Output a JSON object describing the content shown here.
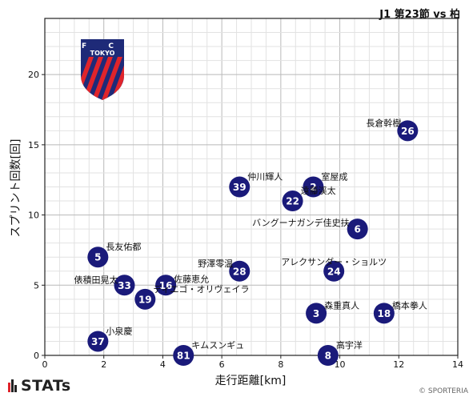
{
  "match_title": "J1 第23節 vs 柏",
  "club_badge": {
    "text_top": "F C",
    "text_mid": "TOKYO",
    "primary": "#1e2a78",
    "accent": "#e0242b"
  },
  "footer": {
    "logo_text": "STATs",
    "copyright": "© SPORTERIA"
  },
  "colors": {
    "marker": "#1a1a7a",
    "marker_text": "#ffffff",
    "grid_major": "#b9b9b9",
    "grid_minor": "#e2e2e2"
  },
  "chart_data": {
    "type": "scatter",
    "xlabel": "走行距離[km]",
    "ylabel": "スプリント回数[回]",
    "xlim": [
      0,
      14
    ],
    "ylim": [
      0,
      24
    ],
    "xticks": [
      0,
      2,
      4,
      6,
      8,
      10,
      12,
      14
    ],
    "yticks": [
      0,
      5,
      10,
      15,
      20
    ],
    "grid": true,
    "points": [
      {
        "number": "26",
        "name": "長倉幹樹",
        "x": 12.3,
        "y": 16
      },
      {
        "number": "39",
        "name": "仲川輝人",
        "x": 6.6,
        "y": 12
      },
      {
        "number": "2",
        "name": "室屋成",
        "x": 9.1,
        "y": 12
      },
      {
        "number": "22",
        "name": "遠藤渓太",
        "x": 8.4,
        "y": 11
      },
      {
        "number": "6",
        "name": "バングーナガンデ佳史扶",
        "x": 10.6,
        "y": 9
      },
      {
        "number": "5",
        "name": "長友佑都",
        "x": 1.8,
        "y": 7
      },
      {
        "number": "28",
        "name": "野澤零温",
        "x": 6.6,
        "y": 6
      },
      {
        "number": "24",
        "name": "アレクサンダー・ショルツ",
        "x": 9.8,
        "y": 6
      },
      {
        "number": "33",
        "name": "俵積田晃太",
        "x": 2.7,
        "y": 5
      },
      {
        "number": "16",
        "name": "佐藤恵允",
        "x": 4.1,
        "y": 5
      },
      {
        "number": "19",
        "name": "ディエゴ・オリヴェイラ",
        "x": 3.4,
        "y": 4
      },
      {
        "number": "3",
        "name": "森重真人",
        "x": 9.2,
        "y": 3
      },
      {
        "number": "18",
        "name": "橋本拳人",
        "x": 11.5,
        "y": 3
      },
      {
        "number": "37",
        "name": "小泉慶",
        "x": 1.8,
        "y": 1
      },
      {
        "number": "81",
        "name": "キムスンギュ",
        "x": 4.7,
        "y": 0
      },
      {
        "number": "8",
        "name": "高宇洋",
        "x": 9.6,
        "y": 0
      }
    ]
  }
}
